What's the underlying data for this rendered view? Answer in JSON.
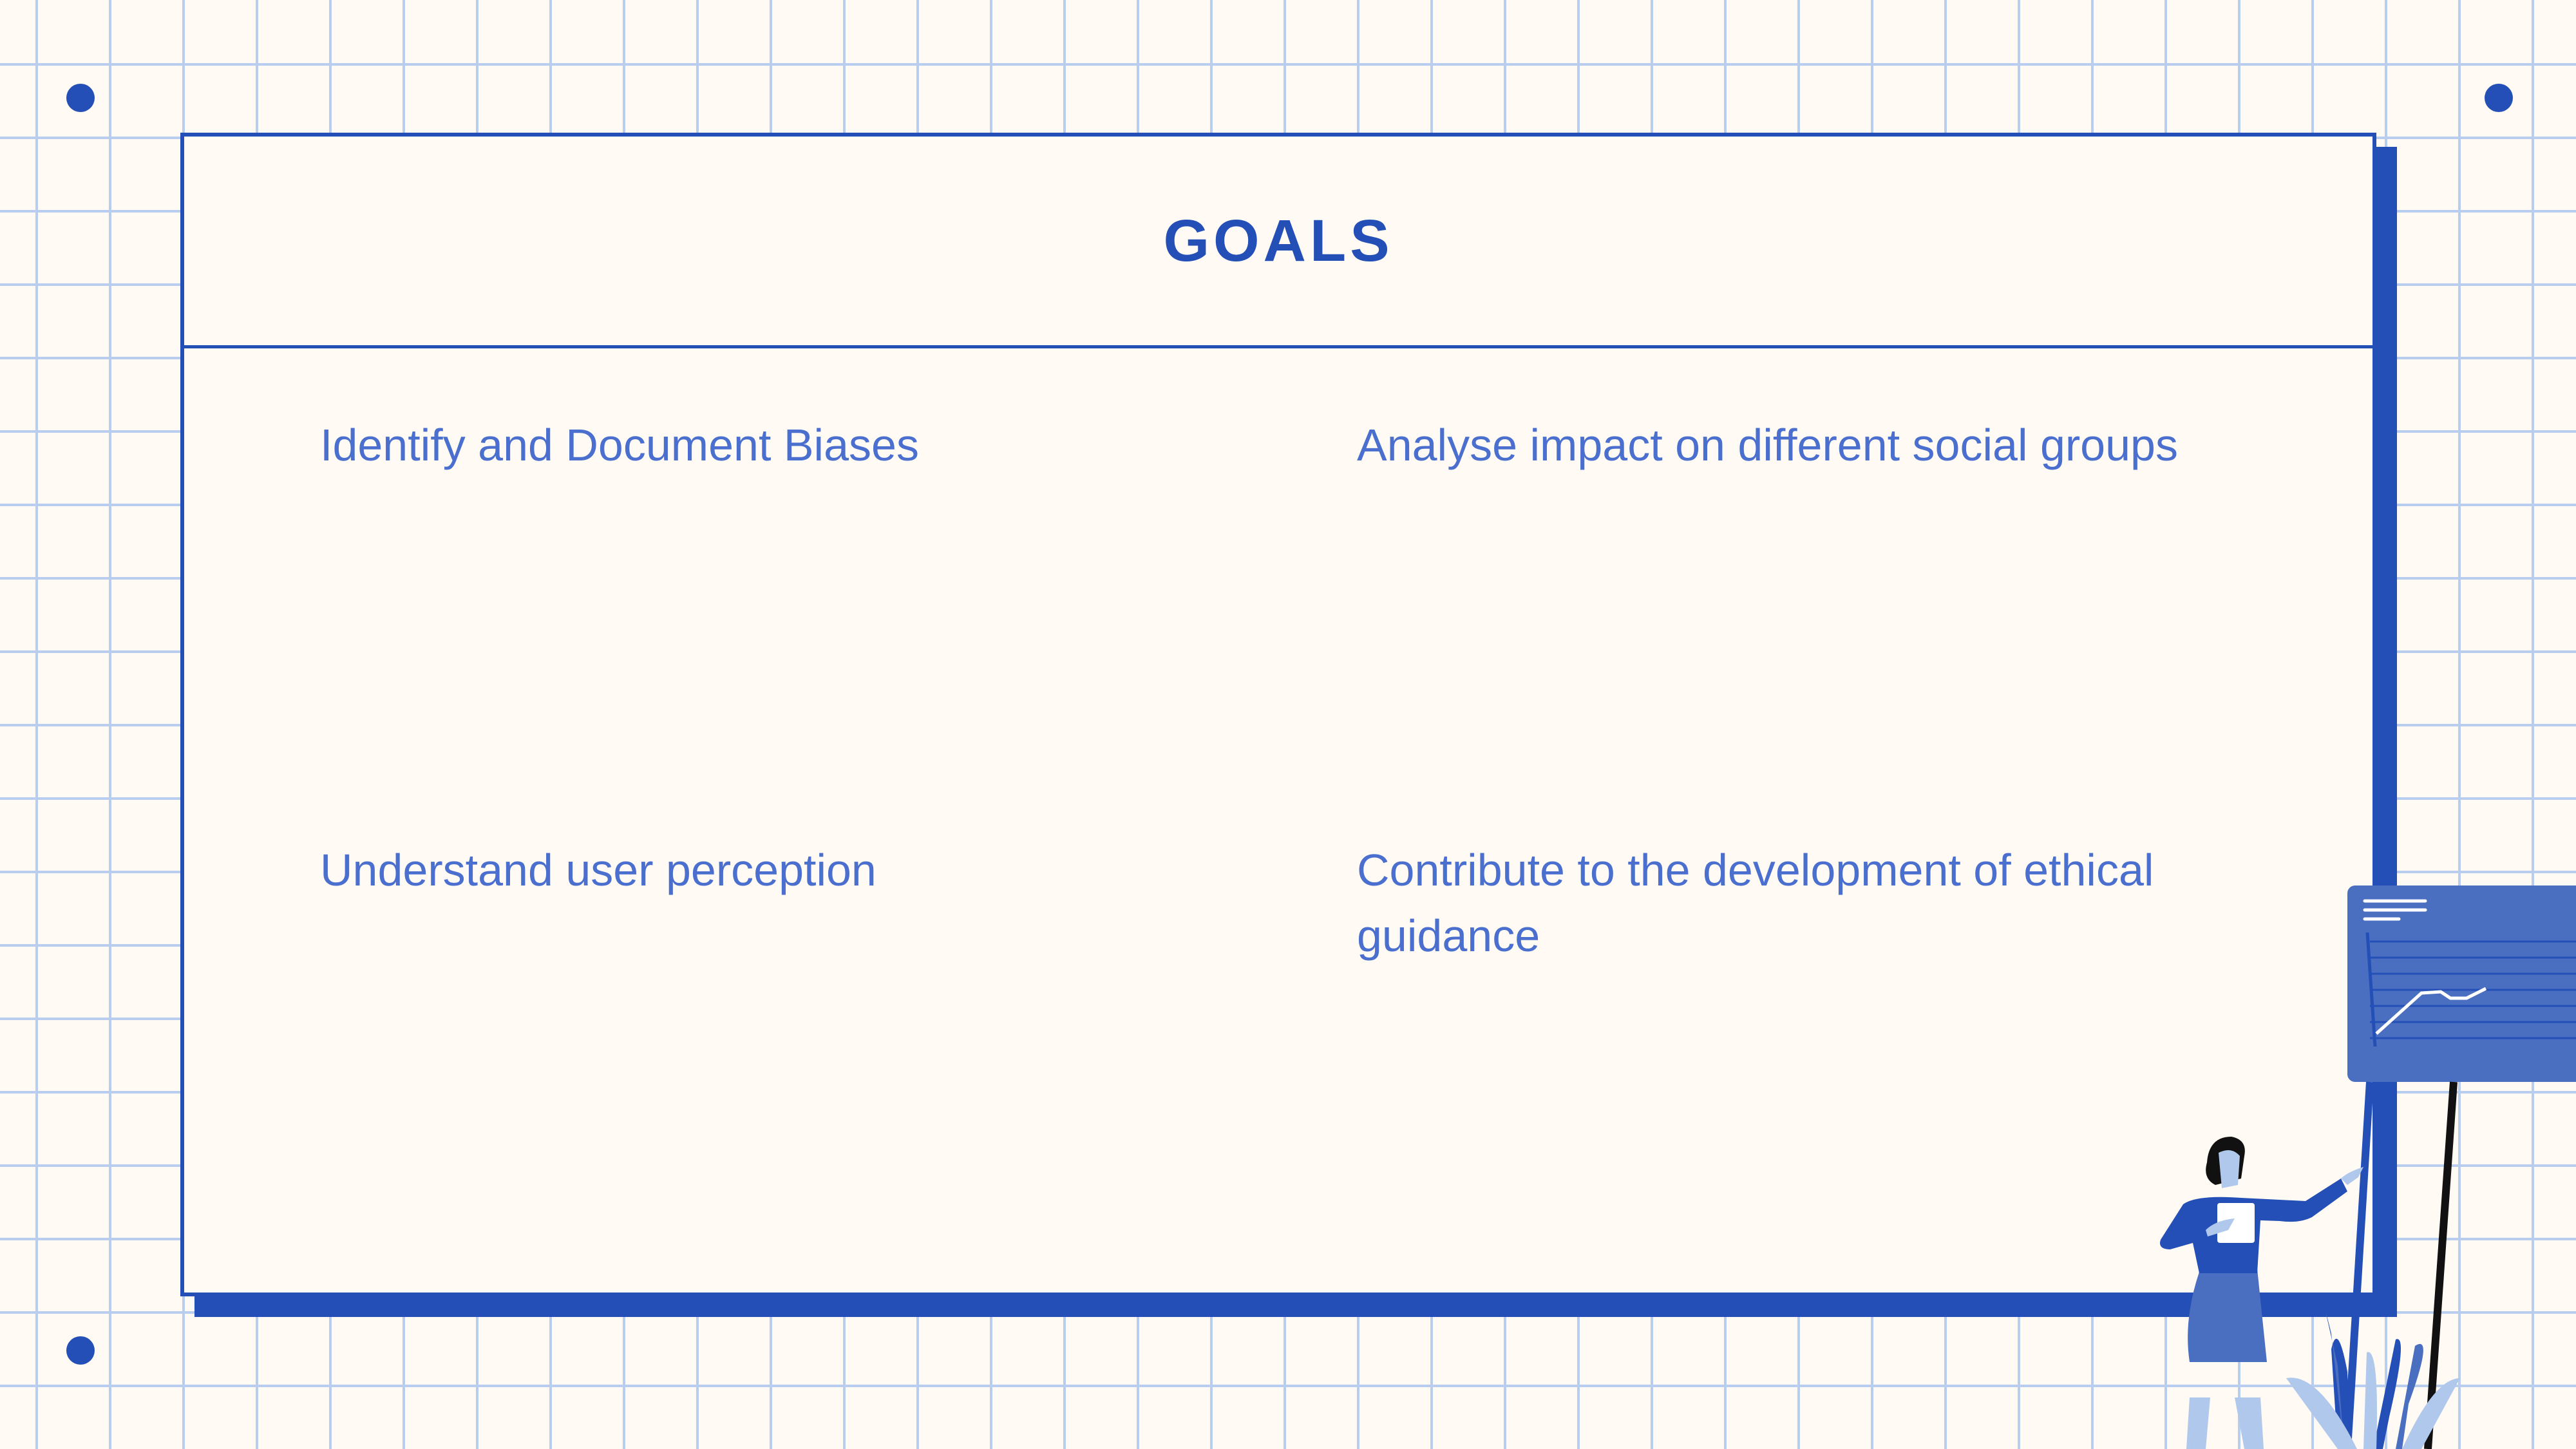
{
  "slide": {
    "title": "GOALS",
    "goals": [
      "Identify and Document Biases",
      "Analyse impact on different social groups",
      "Understand user perception",
      "Contribute to the development of ethical guidance"
    ]
  },
  "colors": {
    "accent": "#244fb6",
    "text": "#4a6fcf",
    "background": "#fffaf3",
    "grid": "#b9cdee"
  },
  "illustration": "woman-presenting-chart"
}
